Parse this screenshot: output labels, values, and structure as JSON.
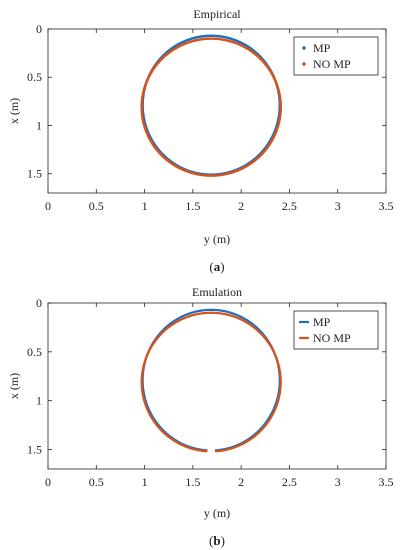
{
  "chart_data": [
    {
      "type": "scatter",
      "panel_label": "(a)",
      "panel_letter": "a",
      "title": "Empirical",
      "xlabel": "y (m)",
      "ylabel": "x (m)",
      "xlim": [
        0,
        3.5
      ],
      "ylim": [
        0,
        1.7
      ],
      "y_reversed": true,
      "xticks": [
        "0",
        "0.5",
        "1",
        "1.5",
        "2",
        "2.5",
        "3",
        "3.5"
      ],
      "yticks": [
        "0",
        "0.5",
        "1",
        "1.5"
      ],
      "legend_position": "top-right",
      "series": [
        {
          "name": "MP",
          "color": "#1f6fc0",
          "marker": "dot",
          "center": [
            1.69,
            0.79
          ],
          "radius_y": 0.71,
          "radius_x": 0.72,
          "gap_deg": 0
        },
        {
          "name": "NO MP",
          "color": "#d95319",
          "marker": "dot",
          "center": [
            1.69,
            0.81
          ],
          "radius_y": 0.72,
          "radius_x": 0.71,
          "gap_deg": 0
        }
      ]
    },
    {
      "type": "line",
      "panel_label": "(b)",
      "panel_letter": "b",
      "title": "Emulation",
      "xlabel": "y (m)",
      "ylabel": "x (m)",
      "xlim": [
        0,
        3.5
      ],
      "ylim": [
        0,
        1.7
      ],
      "y_reversed": true,
      "xticks": [
        "0",
        "0.5",
        "1",
        "1.5",
        "2",
        "2.5",
        "3",
        "3.5"
      ],
      "yticks": [
        "0",
        "0.5",
        "1",
        "1.5"
      ],
      "legend_position": "top-right",
      "series": [
        {
          "name": "MP",
          "color": "#1f6fc0",
          "marker": "line",
          "center": [
            1.69,
            0.79
          ],
          "radius_y": 0.71,
          "radius_x": 0.72,
          "gap_deg": 4
        },
        {
          "name": "NO MP",
          "color": "#d95319",
          "marker": "line",
          "center": [
            1.69,
            0.81
          ],
          "radius_y": 0.72,
          "radius_x": 0.71,
          "gap_deg": 4
        }
      ]
    }
  ]
}
